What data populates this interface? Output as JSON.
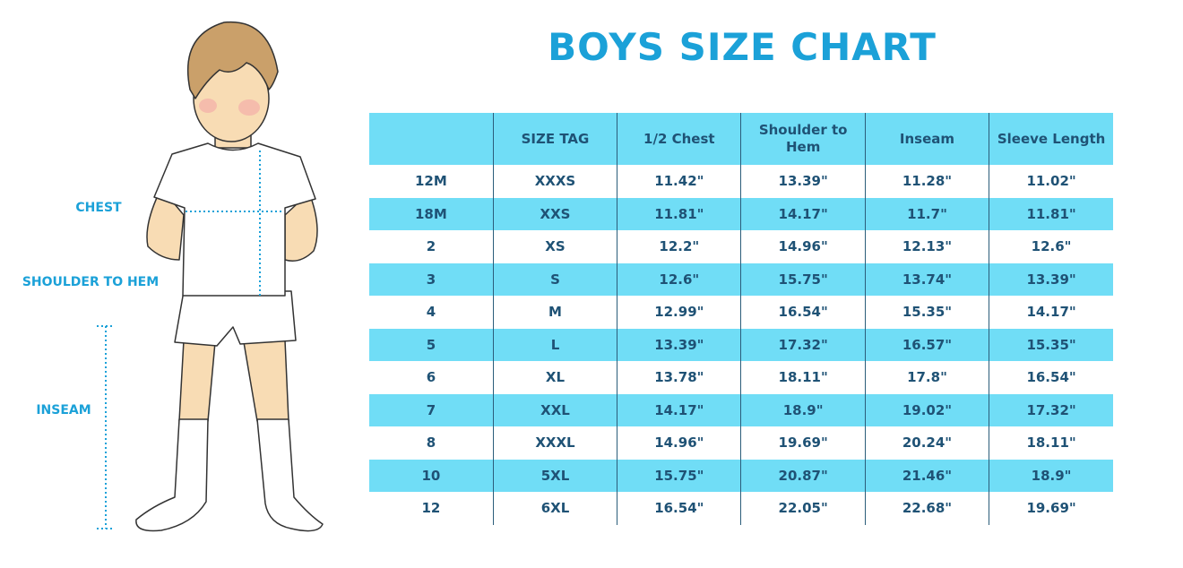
{
  "header": {
    "title": "BOYS SIZE CHART"
  },
  "figure": {
    "labels": [
      "CHEST",
      "SHOULDER TO HEM",
      "INSEAM"
    ]
  },
  "table": {
    "header": [
      "SIZE TAG",
      "1/2 Chest",
      "Shoulder to Hem",
      "Inseam",
      "Sleeve Length"
    ],
    "rows": [
      [
        "12M",
        "XXXS",
        "11.42\"",
        "13.39\"",
        "11.28\"",
        "11.02\""
      ],
      [
        "18M",
        "XXS",
        "11.81\"",
        "14.17\"",
        "11.7\"",
        "11.81\""
      ],
      [
        "2",
        "XS",
        "12.2\"",
        "14.96\"",
        "12.13\"",
        "12.6\""
      ],
      [
        "3",
        "S",
        "12.6\"",
        "15.75\"",
        "13.74\"",
        "13.39\""
      ],
      [
        "4",
        "M",
        "12.99\"",
        "16.54\"",
        "15.35\"",
        "14.17\""
      ],
      [
        "5",
        "L",
        "13.39\"",
        "17.32\"",
        "16.57\"",
        "15.35\""
      ],
      [
        "6",
        "XL",
        "13.78\"",
        "18.11\"",
        "17.8\"",
        "16.54\""
      ],
      [
        "7",
        "XXL",
        "14.17\"",
        "18.9\"",
        "19.02\"",
        "17.32\""
      ],
      [
        "8",
        "XXXL",
        "14.96\"",
        "19.69\"",
        "20.24\"",
        "18.11\""
      ],
      [
        "10",
        "5XL",
        "15.75\"",
        "20.87\"",
        "21.46\"",
        "18.9\""
      ],
      [
        "12",
        "6XL",
        "16.54\"",
        "22.05\"",
        "22.68\"",
        "19.69\""
      ]
    ]
  }
}
